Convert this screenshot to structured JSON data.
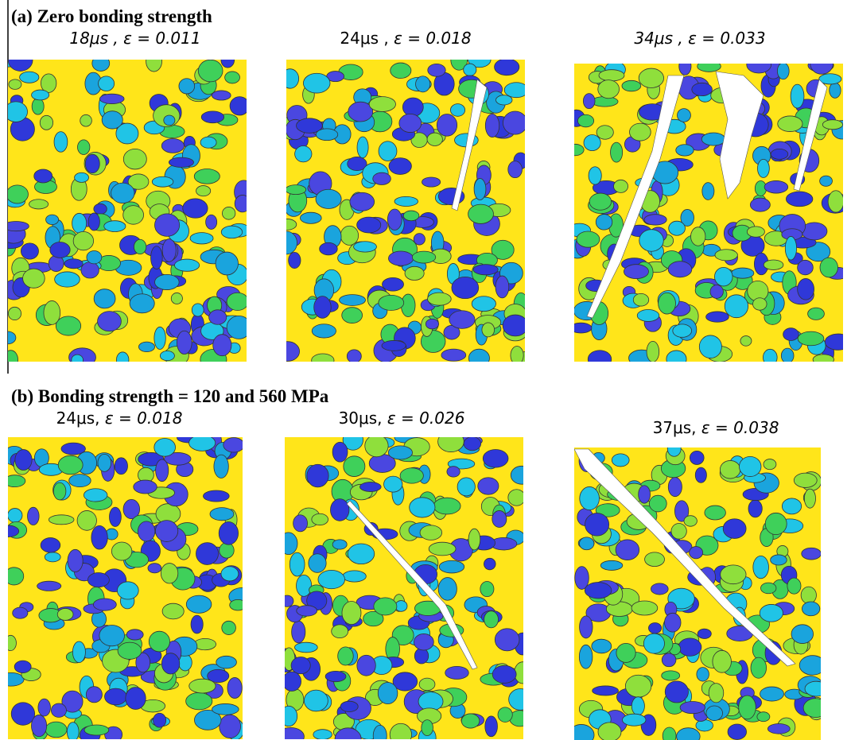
{
  "sections": [
    {
      "title": "(a) Zero bonding strength",
      "panels": [
        {
          "time": "18μs ,",
          "strain": "ε = 0.011"
        },
        {
          "time": "24μs ,",
          "strain": "ε = 0.018"
        },
        {
          "time": "34μs ,",
          "strain": "ε = 0.033"
        }
      ]
    },
    {
      "title": "(b) Bonding strength = 120 and 560 MPa",
      "panels": [
        {
          "time": "24μs,",
          "strain": "ε = 0.018"
        },
        {
          "time": "30μs,",
          "strain": "ε = 0.026"
        },
        {
          "time": "37μs,",
          "strain": "ε = 0.038"
        }
      ]
    }
  ]
}
